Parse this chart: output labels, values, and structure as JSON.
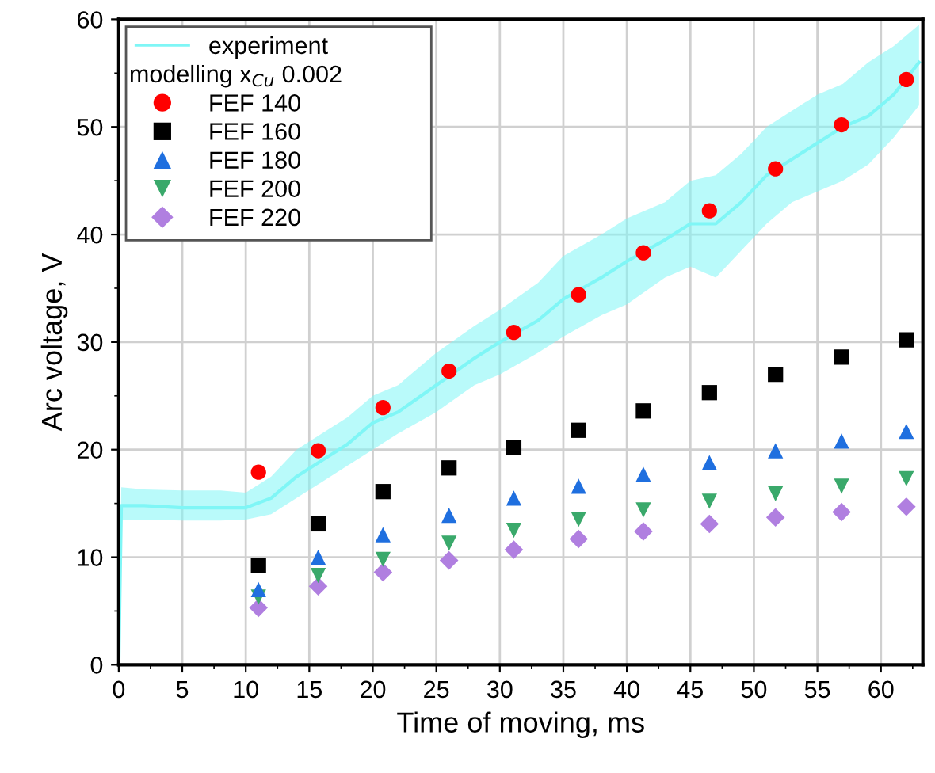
{
  "chart_data": {
    "type": "scatter",
    "xlabel": "Time of moving, ms",
    "ylabel": "Arc voltage, V",
    "legend_title": "modelling x$_{Cu}$ 0.002",
    "xlim": [
      0,
      63.3
    ],
    "ylim": [
      0,
      60
    ],
    "xticks": [
      0,
      5,
      10,
      15,
      20,
      25,
      30,
      35,
      40,
      45,
      50,
      55,
      60
    ],
    "yticks": [
      0,
      10,
      20,
      30,
      40,
      50,
      60
    ],
    "grid": true,
    "legend": "top left",
    "series": [
      {
        "name": "experiment",
        "type": "line",
        "color": "#7ff6f6",
        "marker": "none",
        "x": [
          0,
          0.2,
          2,
          5,
          8,
          10,
          12,
          14,
          16,
          18,
          20,
          22,
          25,
          28,
          30,
          33,
          35,
          38,
          40,
          43,
          45,
          47,
          49,
          51,
          53,
          55,
          57,
          59,
          61,
          63
        ],
        "values": [
          0,
          14.8,
          14.8,
          14.6,
          14.6,
          14.6,
          15.5,
          17.5,
          19,
          20.5,
          22.5,
          23.5,
          26,
          28.5,
          30,
          32,
          34,
          36,
          37.5,
          39.5,
          41,
          41,
          43,
          45.5,
          47,
          48.5,
          50,
          51,
          53,
          56
        ],
        "lower": [
          0,
          13.5,
          13.5,
          13.4,
          13.4,
          13.5,
          14,
          15.5,
          17,
          18.5,
          20,
          21.5,
          23.5,
          26,
          27,
          29,
          30.5,
          32.5,
          33.5,
          36,
          37,
          36,
          38.5,
          41,
          43,
          44,
          45,
          46.5,
          49,
          52
        ],
        "upper": [
          0,
          16.5,
          16.3,
          16.2,
          16.2,
          16,
          17.5,
          20,
          21.5,
          23,
          25,
          26,
          29,
          31.5,
          33,
          35.5,
          38,
          40,
          41.5,
          43,
          45,
          45.5,
          47.5,
          50,
          51.5,
          53,
          54,
          56,
          57.5,
          59.5
        ]
      },
      {
        "name": "FEF 140",
        "color": "#ff0000",
        "marker": "circle",
        "x": [
          11,
          15.7,
          20.8,
          26,
          31.1,
          36.2,
          41.3,
          46.5,
          51.7,
          56.9,
          62
        ],
        "values": [
          17.9,
          19.9,
          23.9,
          27.3,
          30.9,
          34.4,
          38.3,
          42.2,
          46.1,
          50.2,
          54.4
        ]
      },
      {
        "name": "FEF 160",
        "color": "#000000",
        "marker": "square",
        "x": [
          11,
          15.7,
          20.8,
          26,
          31.1,
          36.2,
          41.3,
          46.5,
          51.7,
          56.9,
          62
        ],
        "values": [
          9.2,
          13.1,
          16.1,
          18.3,
          20.2,
          21.8,
          23.6,
          25.3,
          27.0,
          28.6,
          30.2
        ]
      },
      {
        "name": "FEF 180",
        "color": "#1f6fdf",
        "marker": "triangle",
        "x": [
          11,
          15.7,
          20.8,
          26,
          31.1,
          36.2,
          41.3,
          46.5,
          51.7,
          56.9,
          62
        ],
        "values": [
          7.0,
          10.0,
          12.1,
          13.9,
          15.5,
          16.6,
          17.7,
          18.8,
          19.9,
          20.8,
          21.7
        ]
      },
      {
        "name": "FEF 200",
        "color": "#3aa96b",
        "marker": "triangle_down",
        "x": [
          11,
          15.7,
          20.8,
          26,
          31.1,
          36.2,
          41.3,
          46.5,
          51.7,
          56.9,
          62
        ],
        "values": [
          6.3,
          8.3,
          9.8,
          11.3,
          12.5,
          13.5,
          14.4,
          15.2,
          15.9,
          16.6,
          17.3
        ]
      },
      {
        "name": "FEF 220",
        "color": "#b07fe0",
        "marker": "diamond",
        "x": [
          11,
          15.7,
          20.8,
          26,
          31.1,
          36.2,
          41.3,
          46.5,
          51.7,
          56.9,
          62
        ],
        "values": [
          5.3,
          7.3,
          8.6,
          9.7,
          10.7,
          11.7,
          12.4,
          13.1,
          13.7,
          14.2,
          14.7
        ]
      }
    ]
  }
}
